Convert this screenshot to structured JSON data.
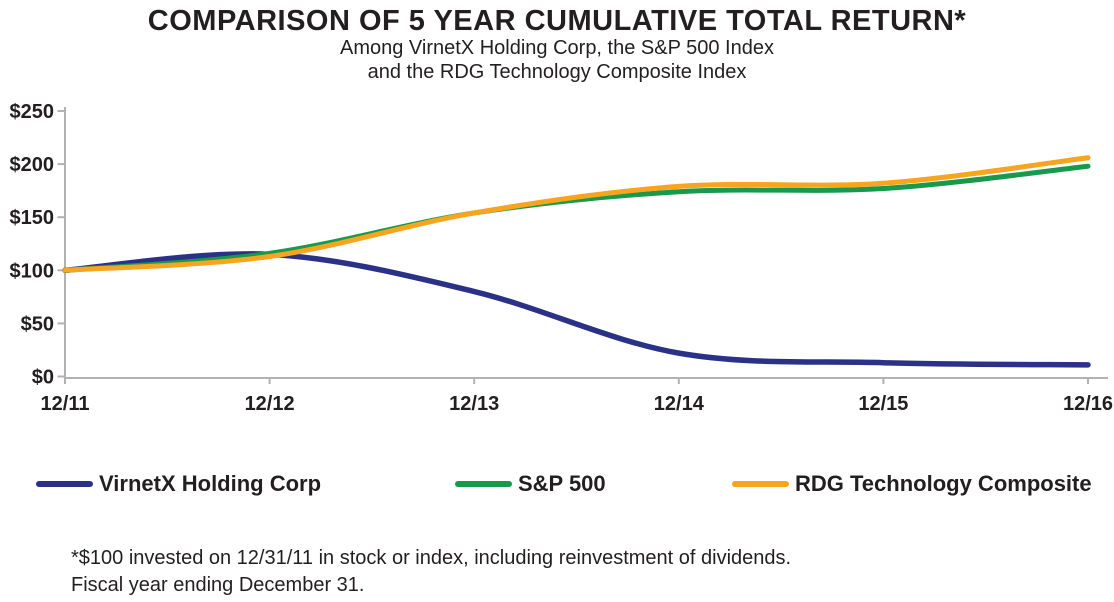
{
  "title": "COMPARISON OF 5 YEAR CUMULATIVE TOTAL RETURN*",
  "subtitle_line1": "Among VirnetX Holding Corp, the S&P 500 Index",
  "subtitle_line2": "and the RDG Technology Composite Index",
  "footnote_line1": "*$100 invested on 12/31/11 in stock or index, including reinvestment of dividends.",
  "footnote_line2": "Fiscal year ending December 31.",
  "legend": [
    {
      "label": "VirnetX Holding Corp",
      "color": "#2a3186"
    },
    {
      "label": "S&P 500",
      "color": "#179a4b"
    },
    {
      "label": "RDG Technology Composite",
      "color": "#f7a41f"
    }
  ],
  "colors": {
    "axis": "#b2b2b2",
    "text": "#231f20",
    "virnetx": "#2a3186",
    "sp500": "#179a4b",
    "rdg": "#f7a41f"
  },
  "chart_data": {
    "type": "line",
    "title": "COMPARISON OF 5 YEAR CUMULATIVE TOTAL RETURN*",
    "x": [
      "12/11",
      "12/12",
      "12/13",
      "12/14",
      "12/15",
      "12/16"
    ],
    "series": [
      {
        "name": "VirnetX Holding Corp",
        "color": "#2a3186",
        "values": [
          100,
          115,
          80,
          22,
          13,
          11
        ]
      },
      {
        "name": "S&P 500",
        "color": "#179a4b",
        "values": [
          100,
          116,
          154,
          174,
          177,
          198
        ]
      },
      {
        "name": "RDG Technology Composite",
        "color": "#f7a41f",
        "values": [
          100,
          113,
          154,
          179,
          182,
          206
        ]
      }
    ],
    "y_ticks": [
      0,
      50,
      100,
      150,
      200,
      250
    ],
    "y_tick_labels": [
      "$0",
      "$50",
      "$100",
      "$150",
      "$200",
      "$250"
    ],
    "ylim": [
      0,
      250
    ],
    "xlabel": "",
    "ylabel": "",
    "grid": false,
    "legend_position": "bottom",
    "line_smoothing": "smooth"
  }
}
